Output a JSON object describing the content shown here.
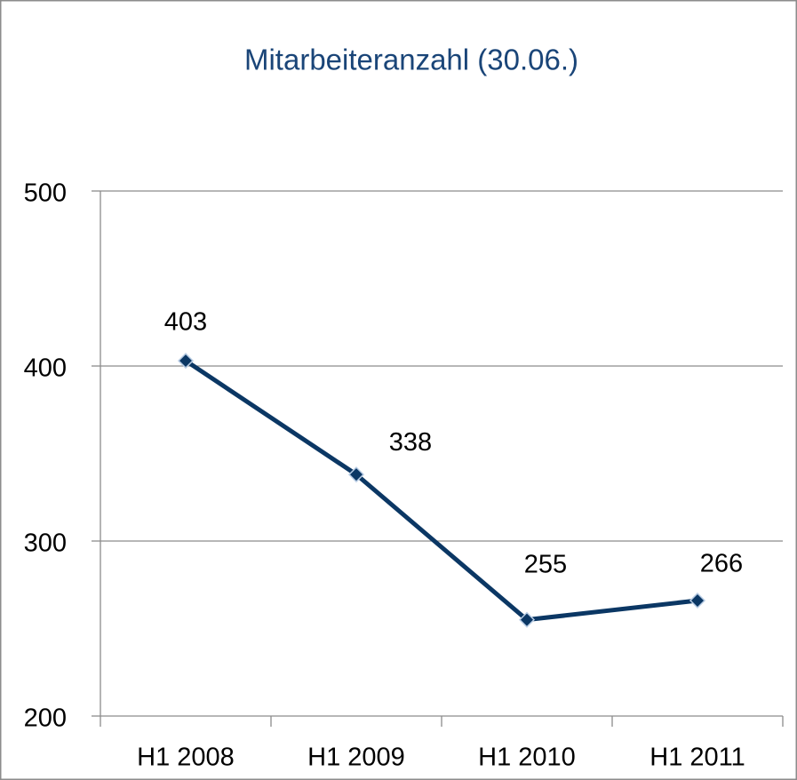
{
  "chart_data": {
    "type": "line",
    "title": "Mitarbeiteranzahl (30.06.)",
    "categories": [
      "H1 2008",
      "H1 2009",
      "H1 2010",
      "H1 2011"
    ],
    "series": [
      {
        "name": "Mitarbeiteranzahl",
        "color": "#0b3764",
        "values": [
          403,
          338,
          255,
          266
        ]
      }
    ],
    "ylim": [
      200,
      500
    ],
    "yticks": [
      200,
      300,
      400,
      500
    ],
    "grid": true
  }
}
